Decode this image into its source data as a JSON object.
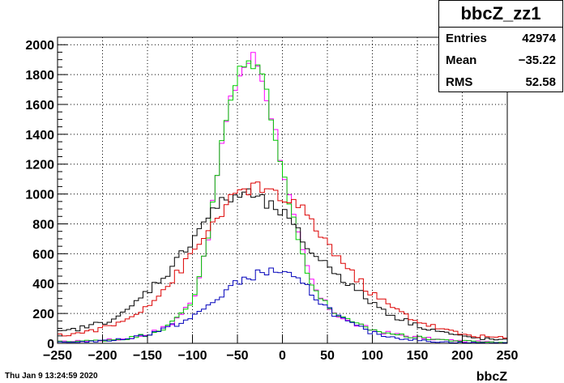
{
  "stats": {
    "title": "bbcZ_zz1",
    "rows": [
      {
        "label": "Entries",
        "value": "42974"
      },
      {
        "label": "Mean",
        "value": "−35.22"
      },
      {
        "label": "RMS",
        "value": "52.58"
      }
    ]
  },
  "timestamp": "Thu Jan  9 13:24:59 2020",
  "chart_data": {
    "type": "line",
    "title": "",
    "xlabel": "bbcZ",
    "ylabel": "",
    "xlim": [
      -250,
      250
    ],
    "ylim": [
      0,
      2050
    ],
    "grid": true,
    "x_ticks": [
      -250,
      -200,
      -150,
      -100,
      -50,
      0,
      50,
      100,
      150,
      200,
      250
    ],
    "y_ticks": [
      0,
      200,
      400,
      600,
      800,
      1000,
      1200,
      1400,
      1600,
      1800,
      2000
    ],
    "x": [
      -250,
      -225,
      -200,
      -175,
      -150,
      -125,
      -100,
      -90,
      -80,
      -70,
      -60,
      -50,
      -40,
      -30,
      -20,
      -10,
      0,
      10,
      20,
      30,
      40,
      50,
      60,
      75,
      100,
      125,
      150,
      175,
      200,
      225,
      250
    ],
    "series": [
      {
        "color": "#ff00ff",
        "values": [
          10,
          15,
          20,
          30,
          60,
          120,
          280,
          520,
          800,
          1250,
          1550,
          1780,
          1880,
          1920,
          1720,
          1480,
          1200,
          900,
          650,
          450,
          320,
          250,
          200,
          140,
          90,
          60,
          40,
          25,
          15,
          10,
          5
        ]
      },
      {
        "color": "#00cc00",
        "values": [
          10,
          15,
          20,
          30,
          60,
          120,
          280,
          520,
          800,
          1250,
          1560,
          1790,
          1870,
          1900,
          1740,
          1480,
          1180,
          880,
          640,
          450,
          320,
          250,
          200,
          140,
          90,
          60,
          40,
          25,
          15,
          10,
          5
        ]
      },
      {
        "color": "#000000",
        "values": [
          70,
          100,
          140,
          200,
          350,
          490,
          700,
          800,
          870,
          930,
          960,
          990,
          1010,
          980,
          940,
          900,
          880,
          790,
          720,
          620,
          580,
          520,
          480,
          390,
          270,
          180,
          120,
          80,
          45,
          30,
          20
        ]
      },
      {
        "color": "#dd0000",
        "values": [
          50,
          70,
          100,
          150,
          260,
          400,
          600,
          680,
          780,
          870,
          940,
          990,
          1030,
          1060,
          1020,
          990,
          970,
          950,
          900,
          830,
          750,
          670,
          600,
          480,
          330,
          230,
          150,
          100,
          60,
          45,
          35
        ]
      },
      {
        "color": "#0000bb",
        "values": [
          5,
          10,
          15,
          30,
          60,
          110,
          170,
          220,
          260,
          310,
          370,
          400,
          440,
          460,
          470,
          490,
          480,
          440,
          400,
          360,
          290,
          240,
          190,
          130,
          70,
          40,
          20,
          10,
          5,
          3,
          2
        ]
      }
    ]
  }
}
